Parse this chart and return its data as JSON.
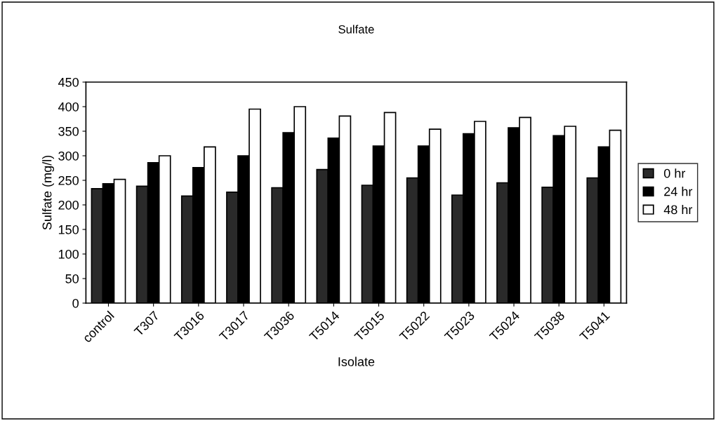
{
  "chart_data": {
    "type": "bar",
    "title": "Sulfate",
    "xlabel": "Isolate",
    "ylabel": "Sulfate (mg/l)",
    "categories": [
      "control",
      "T307",
      "T3016",
      "T3017",
      "T3036",
      "T5014",
      "T5015",
      "T5022",
      "T5023",
      "T5024",
      "T5038",
      "T5041"
    ],
    "series": [
      {
        "name": "0 hr",
        "color": "#2a2a2a",
        "values": [
          233,
          238,
          218,
          226,
          235,
          272,
          240,
          255,
          220,
          245,
          236,
          255
        ]
      },
      {
        "name": "24 hr",
        "color": "#000000",
        "values": [
          243,
          286,
          276,
          300,
          347,
          336,
          320,
          320,
          345,
          357,
          341,
          318
        ]
      },
      {
        "name": "48 hr",
        "color": "#ffffff",
        "values": [
          252,
          300,
          318,
          395,
          400,
          381,
          388,
          354,
          370,
          378,
          360,
          352
        ]
      }
    ],
    "ylim": [
      0,
      450
    ],
    "yticks": [
      0,
      50,
      100,
      150,
      200,
      250,
      300,
      350,
      400,
      450
    ],
    "grid": false,
    "legend": "right"
  }
}
